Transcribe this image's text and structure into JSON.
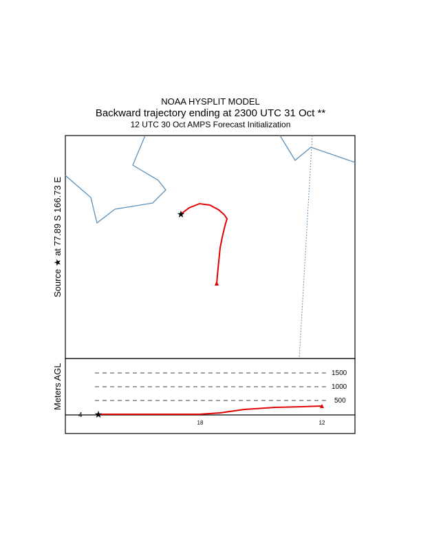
{
  "header": {
    "line1": "NOAA HYSPLIT MODEL",
    "line2": "Backward trajectory ending at 2300 UTC 31 Oct **",
    "line3": "12 UTC 30 Oct    AMPS  Forecast Initialization"
  },
  "map": {
    "source_label": "Source ★ at  77.89 S  166.73 E",
    "coast_color": "#5b8fb9",
    "trajectory_color": "#e00000"
  },
  "height_panel": {
    "ylabel": "Meters AGL",
    "levels": [
      "1500",
      "1000",
      "500"
    ],
    "start_label": "4",
    "time_labels": [
      "18",
      "12"
    ]
  }
}
